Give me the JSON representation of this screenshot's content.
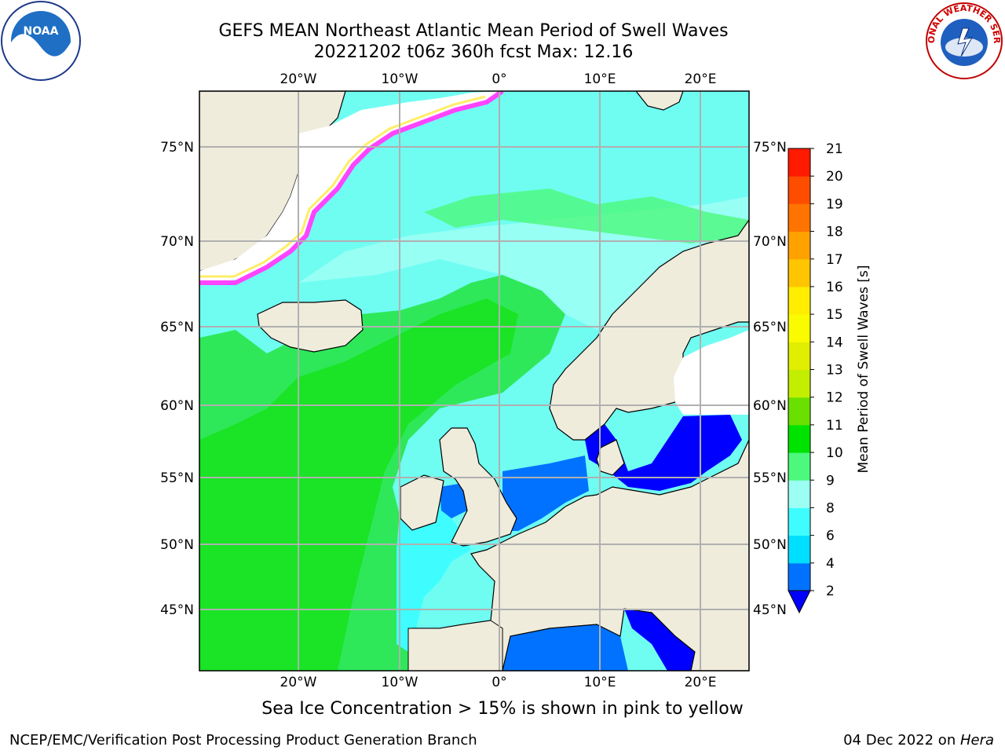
{
  "title_line1": "GEFS MEAN Northeast Atlantic Mean Period of Swell Waves",
  "title_line2": "20221202 t06z 360h fcst   Max: 12.16",
  "map": {
    "lon_range": [
      -30,
      25
    ],
    "lat_range": [
      41,
      78
    ],
    "lon_ticks": [
      {
        "value": -20,
        "label": "20°W"
      },
      {
        "value": -10,
        "label": "10°W"
      },
      {
        "value": 0,
        "label": "0°"
      },
      {
        "value": 10,
        "label": "10°E"
      },
      {
        "value": 20,
        "label": "20°E"
      }
    ],
    "lat_ticks": [
      {
        "value": 45,
        "label": "45°N"
      },
      {
        "value": 50,
        "label": "50°N"
      },
      {
        "value": 55,
        "label": "55°N"
      },
      {
        "value": 60,
        "label": "60°N"
      },
      {
        "value": 65,
        "label": "65°N"
      },
      {
        "value": 70,
        "label": "70°N"
      },
      {
        "value": 75,
        "label": "75°N"
      }
    ],
    "grid": true,
    "colors": {
      "land": "#efecdc",
      "ice_free_land": "#ffffff",
      "ocean_default": "#6ffdf2",
      "coastline": "#000000"
    }
  },
  "colorbar": {
    "label": "Mean Period of Swell Waves [s]",
    "ticks": [
      "2",
      "4",
      "6",
      "8",
      "9",
      "10",
      "11",
      "12",
      "13",
      "14",
      "15",
      "16",
      "17",
      "18",
      "19",
      "20",
      "21"
    ],
    "colors": [
      "#0072ff",
      "#00dfff",
      "#3ffdff",
      "#9cfff4",
      "#4cf97c",
      "#00e300",
      "#6ae000",
      "#c3ee00",
      "#e1ee00",
      "#fbfb00",
      "#ffee00",
      "#ffc500",
      "#ffa200",
      "#ff7400",
      "#ff4d00",
      "#ff1a00"
    ],
    "under_color": "#0000ff"
  },
  "ice_note": "Sea Ice Concentration > 15% is shown in pink to yellow",
  "footer": {
    "left": "NCEP/EMC/Verification Post Processing Product Generation Branch",
    "right_date": "04 Dec 2022 on ",
    "right_host": "Hera"
  },
  "logos": {
    "noaa_text": "NOAA",
    "nws_text": "NATIONAL WEATHER SERVICE"
  }
}
